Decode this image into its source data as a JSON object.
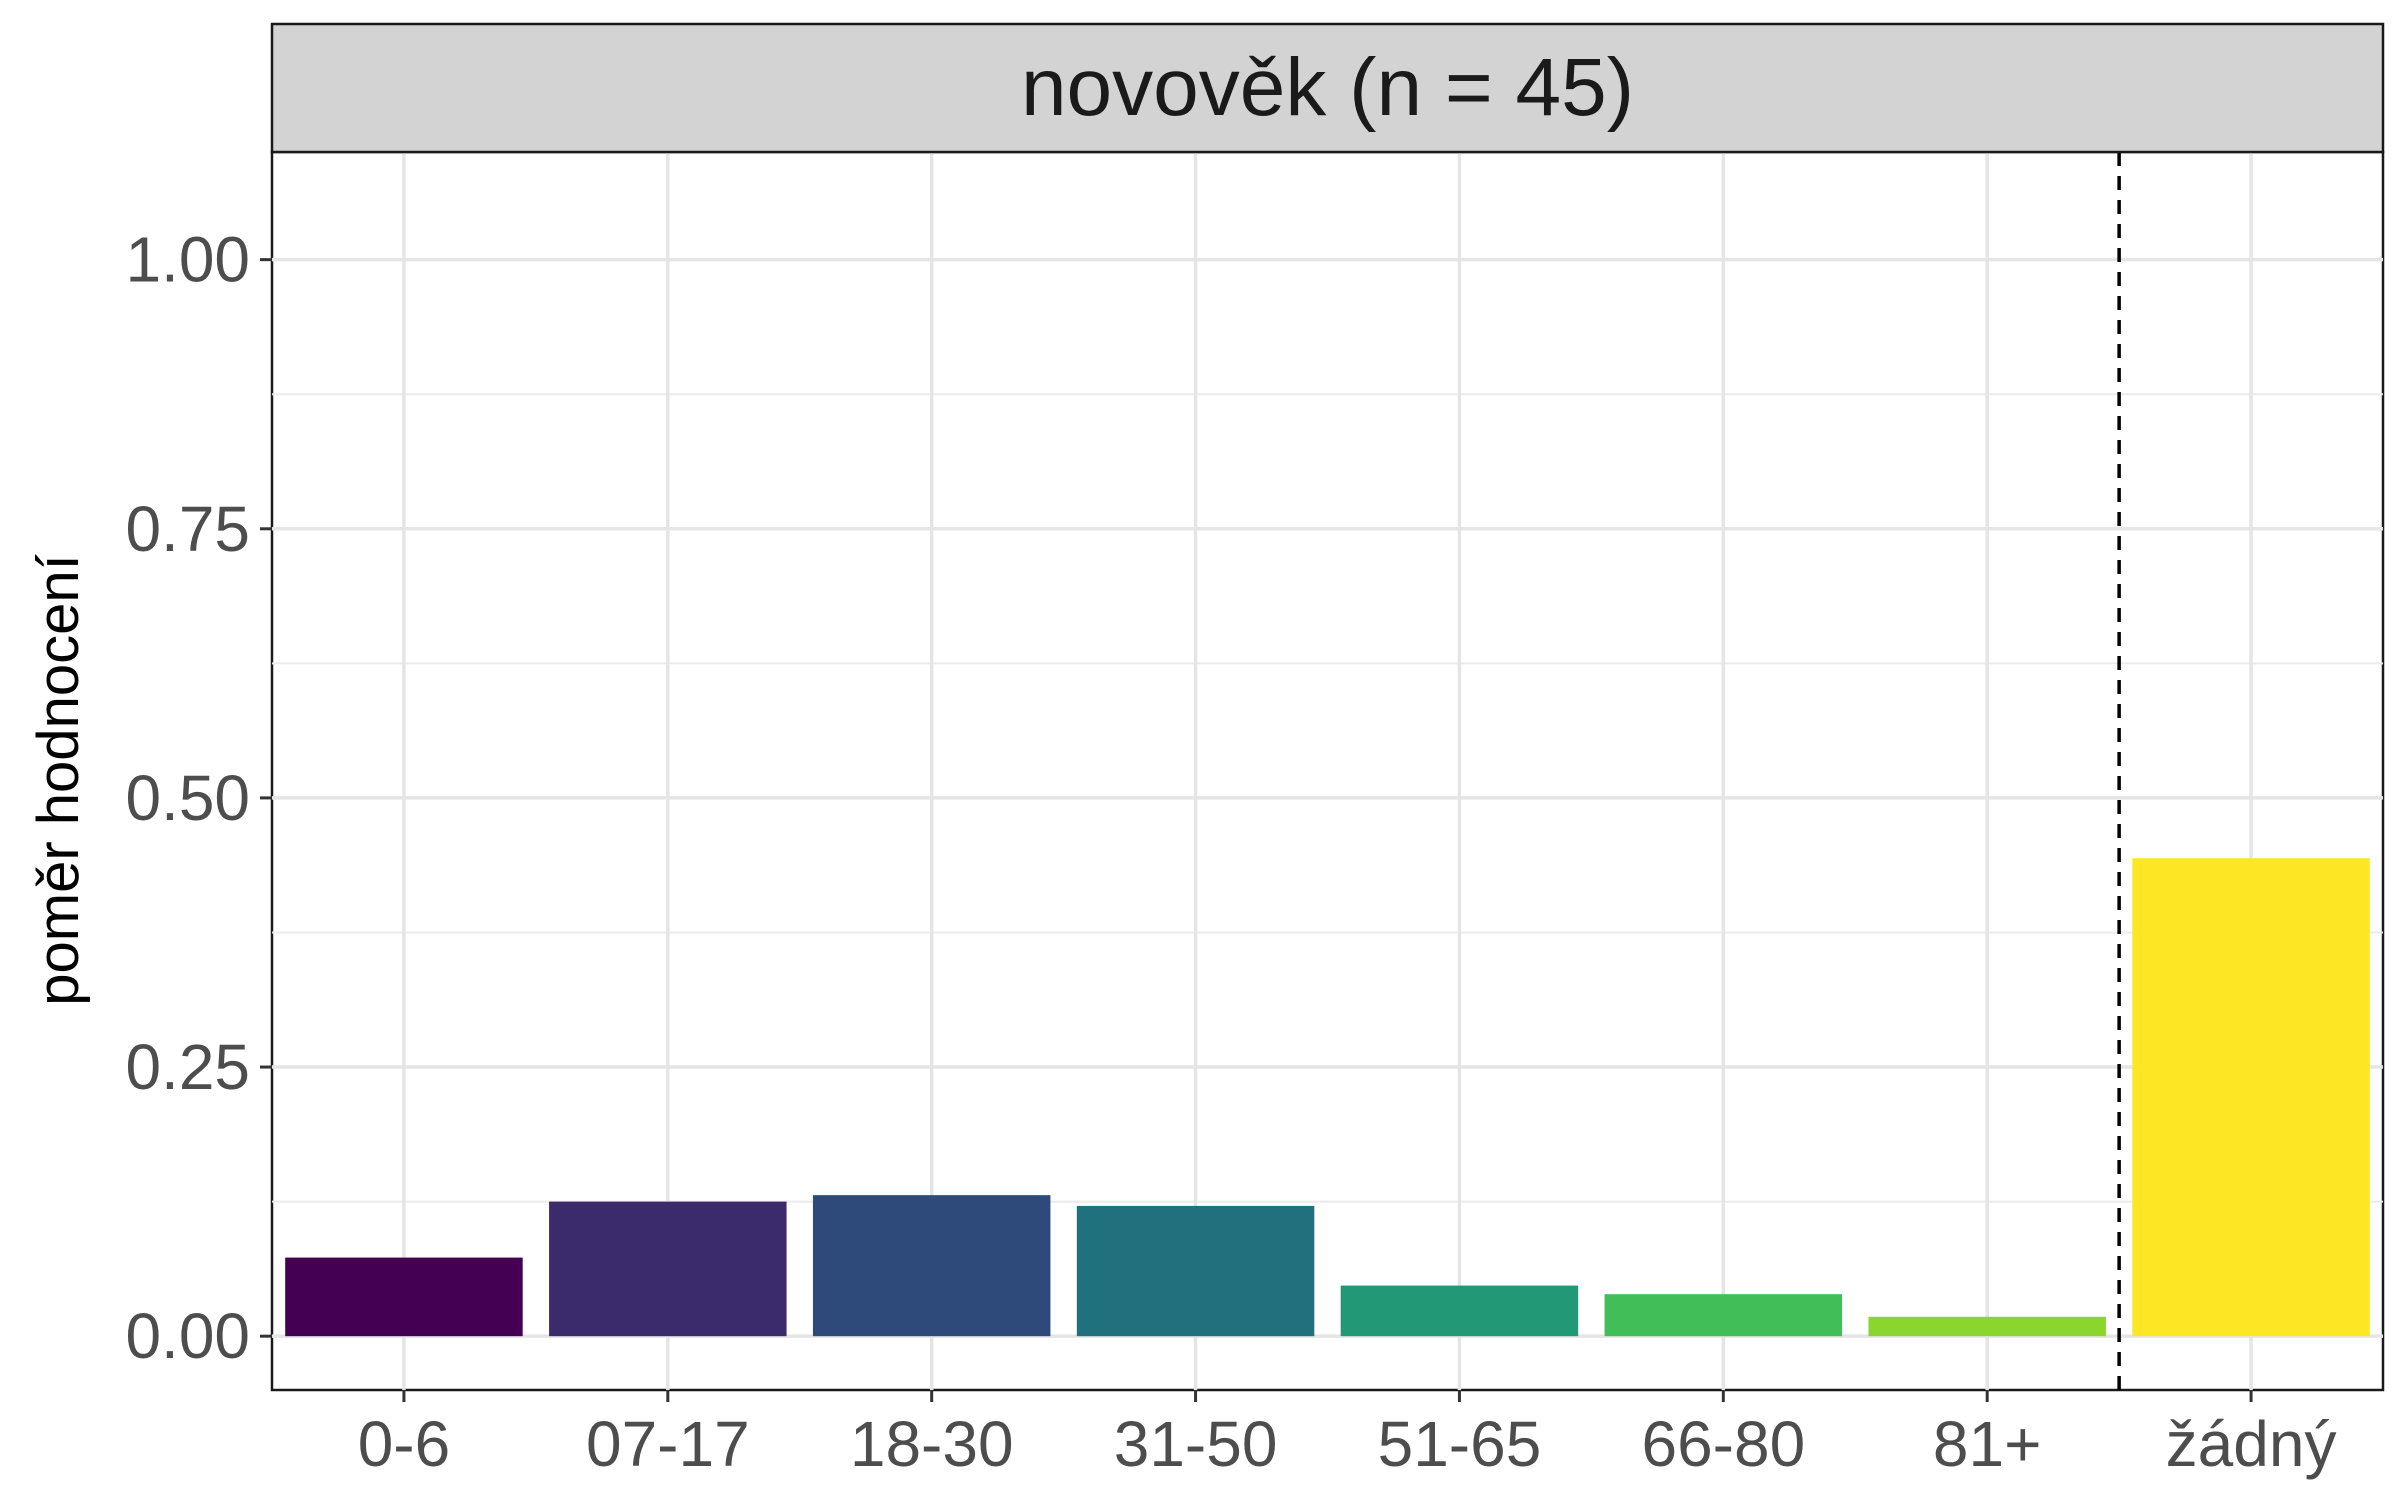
{
  "chart_data": {
    "type": "bar",
    "title": "novověk (n = 45)",
    "xlabel": "",
    "ylabel": "poměr hodnocení",
    "categories": [
      "0-6",
      "07-17",
      "18-30",
      "31-50",
      "51-65",
      "66-80",
      "81+",
      "žádný"
    ],
    "values": [
      0.073,
      0.125,
      0.131,
      0.121,
      0.047,
      0.039,
      0.018,
      0.444
    ],
    "colors": [
      "#440154",
      "#3B2A6C",
      "#2D4A7A",
      "#21707D",
      "#229877",
      "#42BE58",
      "#8AD62E",
      "#FDE725"
    ],
    "ylim": [
      -0.05,
      1.1
    ],
    "yticks": [
      0.0,
      0.25,
      0.5,
      0.75,
      1.0
    ],
    "ytick_labels": [
      "0.00",
      "0.25",
      "0.50",
      "0.75",
      "1.00"
    ],
    "reference_line": {
      "after_category": "81+",
      "style": "dashed"
    },
    "grid": true,
    "legend": "none"
  }
}
